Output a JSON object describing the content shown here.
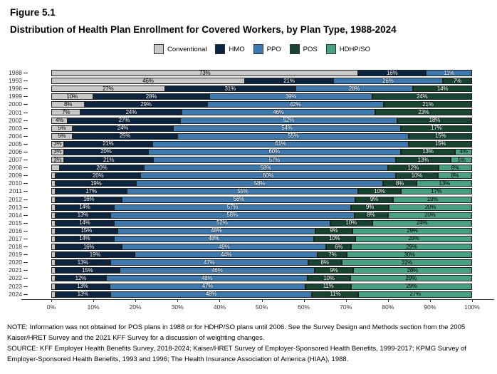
{
  "header": {
    "figure_label": "Figure 5.1",
    "title": "Distribution of Health Plan Enrollment for Covered Workers, by Plan Type, 1988-2024"
  },
  "chart_data": {
    "type": "bar",
    "orientation": "horizontal_stacked",
    "title": "Distribution of Health Plan Enrollment for Covered Workers, by Plan Type, 1988-2024",
    "categories": [
      "1988",
      "1993",
      "1996",
      "1999",
      "2000",
      "2001",
      "2002",
      "2003",
      "2004",
      "2005",
      "2006",
      "2007",
      "2008",
      "2009",
      "2010",
      "2011",
      "2012",
      "2013",
      "2014",
      "2015",
      "2016",
      "2017",
      "2018",
      "2019",
      "2020",
      "2021",
      "2022",
      "2023",
      "2024"
    ],
    "series": [
      {
        "name": "Conventional",
        "color": "#c9c9c9",
        "label_color": "dark",
        "values": [
          73,
          46,
          27,
          10,
          8,
          7,
          4,
          5,
          5,
          3,
          3,
          3,
          2,
          1,
          1,
          1,
          1,
          1,
          1,
          1,
          1,
          1,
          1,
          1,
          1,
          1,
          1,
          1,
          1
        ]
      },
      {
        "name": "HMO",
        "color": "#0d2440",
        "label_color": "light",
        "values": [
          16,
          21,
          31,
          28,
          29,
          24,
          27,
          24,
          25,
          21,
          20,
          21,
          20,
          20,
          19,
          17,
          16,
          14,
          13,
          14,
          15,
          14,
          16,
          19,
          13,
          15,
          12,
          13,
          13
        ]
      },
      {
        "name": "PPO",
        "color": "#3d79af",
        "label_color": "light",
        "values": [
          11,
          26,
          28,
          39,
          42,
          46,
          52,
          54,
          55,
          61,
          60,
          57,
          58,
          60,
          58,
          55,
          56,
          57,
          58,
          52,
          48,
          48,
          49,
          44,
          47,
          46,
          48,
          47,
          48
        ]
      },
      {
        "name": "POS",
        "color": "#164430",
        "label_color": "light",
        "values": [
          null,
          7,
          14,
          24,
          21,
          23,
          18,
          17,
          15,
          15,
          13,
          13,
          12,
          10,
          8,
          10,
          9,
          9,
          8,
          10,
          9,
          10,
          6,
          7,
          8,
          9,
          10,
          11,
          11
        ]
      },
      {
        "name": "HDHP/SO",
        "color": "#4aa181",
        "label_color": "dark",
        "values": [
          null,
          null,
          null,
          null,
          null,
          null,
          null,
          null,
          null,
          null,
          4,
          5,
          8,
          8,
          13,
          17,
          19,
          20,
          20,
          24,
          29,
          28,
          29,
          30,
          31,
          28,
          29,
          29,
          27
        ]
      }
    ],
    "x_ticks": [
      "0%",
      "10%",
      "20%",
      "30%",
      "40%",
      "50%",
      "60%",
      "70%",
      "80%",
      "90%",
      "100%"
    ],
    "xlim": [
      0,
      100
    ],
    "value_suffix": "%",
    "label_min_value": 3,
    "legend_position": "top",
    "grid": false
  },
  "notes": {
    "note": "NOTE: Information was not obtained for POS plans in 1988 or for HDHP/SO plans until 2006. See the Survey Design and Methods section from the 2005 Kaiser/HRET Survey and the 2021 KFF Survey for a discussion of weighting changes.",
    "source": "SOURCE: KFF Employer Health Benefits Survey, 2018-2024; Kaiser/HRET Survey of Employer-Sponsored Health Benefits, 1999-2017; KPMG Survey of Employer-Sponsored Health Benefits, 1993 and 1996; The Health Insurance Association of America (HIAA), 1988."
  }
}
